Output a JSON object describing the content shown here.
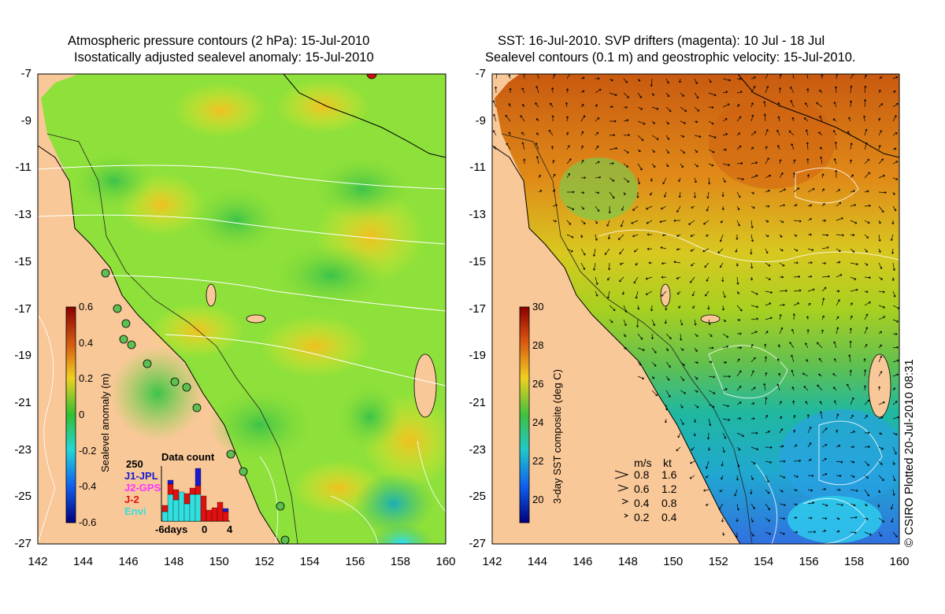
{
  "left_panel": {
    "title_line1": "Atmospheric pressure contours (2 hPa): 15-Jul-2010",
    "title_line2": "Isostatically adjusted sealevel anomaly: 15-Jul-2010",
    "y_ticks": [
      "-7",
      "-9",
      "-11",
      "-13",
      "-15",
      "-17",
      "-19",
      "-21",
      "-23",
      "-25",
      "-27"
    ],
    "x_ticks": [
      "142",
      "144",
      "146",
      "148",
      "150",
      "152",
      "154",
      "156",
      "158",
      "160"
    ],
    "colorbar": {
      "label": "Sealevel anomaly (m)",
      "ticks": [
        "0.6",
        "0.4",
        "0.2",
        "0",
        "-0.2",
        "-0.4",
        "-0.6"
      ]
    },
    "data_count": {
      "title": "Data count",
      "max_label": "250",
      "missions": [
        {
          "name": "J1-JPL",
          "color": "#1a1acc"
        },
        {
          "name": "J2-GPS",
          "color": "#ff33ff"
        },
        {
          "name": "J-2",
          "color": "#e01010"
        },
        {
          "name": "Envi",
          "color": "#33e0e0"
        }
      ],
      "axis_labels": [
        "-6days",
        "0",
        "4"
      ]
    }
  },
  "right_panel": {
    "title_line1": "SST: 16-Jul-2010. SVP drifters (magenta): 10 Jul - 18 Jul",
    "title_line2": "Sealevel contours (0.1 m) and geostrophic velocity: 15-Jul-2010.",
    "y_ticks": [
      "-7",
      "-9",
      "-11",
      "-13",
      "-15",
      "-17",
      "-19",
      "-21",
      "-23",
      "-25",
      "-27"
    ],
    "x_ticks": [
      "142",
      "144",
      "146",
      "148",
      "150",
      "152",
      "154",
      "156",
      "158",
      "160"
    ],
    "colorbar": {
      "label": "3-day SST composite (deg C)",
      "ticks": [
        "30",
        "28",
        "26",
        "24",
        "22",
        "20"
      ]
    },
    "velocity_legend": {
      "header_ms": "m/s",
      "header_kt": "kt",
      "rows": [
        {
          "ms": "0.8",
          "kt": "1.6"
        },
        {
          "ms": "0.6",
          "kt": "1.2"
        },
        {
          "ms": "0.4",
          "kt": "0.8"
        },
        {
          "ms": "0.2",
          "kt": "0.4"
        }
      ]
    }
  },
  "credit": "© CSIRO Plotted 20-Jul-2010 08:31",
  "colors": {
    "land": "#f9c898",
    "ocean_green": "#8ee03a",
    "ocean_yellow": "#e6ef2c"
  }
}
